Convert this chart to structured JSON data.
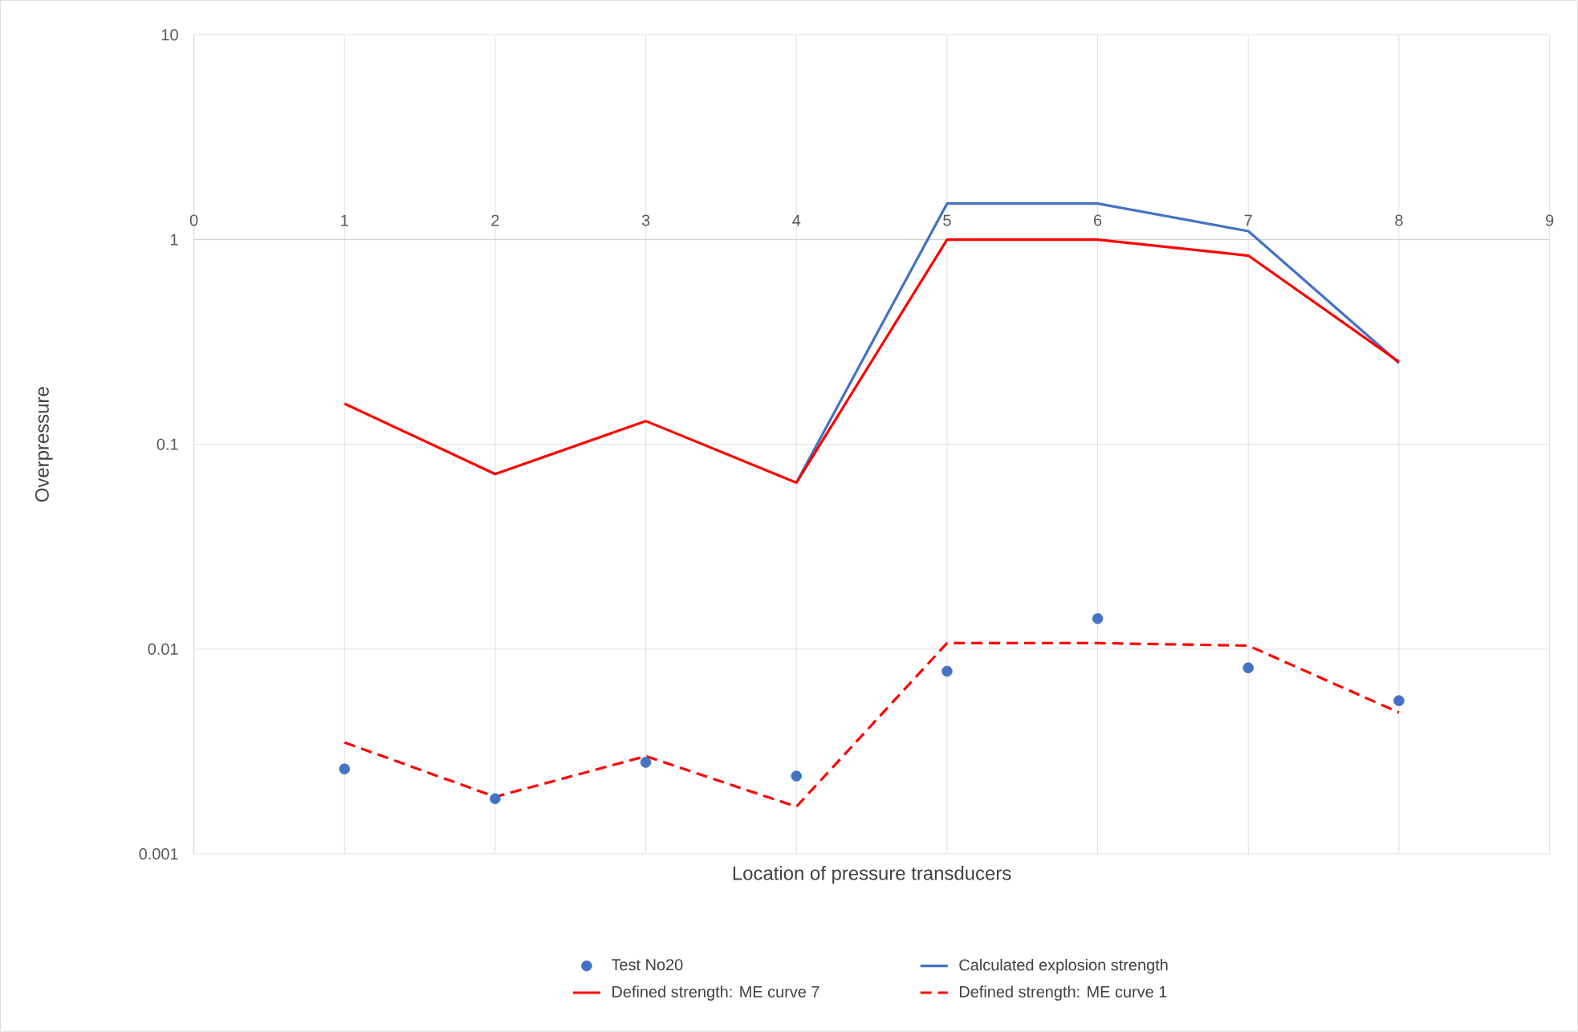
{
  "chart_data": {
    "type": "line",
    "xlabel": "Location of pressure transducers",
    "ylabel": "Overpressure",
    "x": [
      1,
      2,
      3,
      4,
      5,
      6,
      7,
      8
    ],
    "xlim": [
      0,
      9
    ],
    "xticks": [
      0,
      1,
      2,
      3,
      4,
      5,
      6,
      7,
      8,
      9
    ],
    "ylim": [
      0.001,
      10
    ],
    "yticks": [
      0.001,
      0.01,
      0.1,
      1,
      10
    ],
    "log": "y",
    "grid": true,
    "legend": "bottom",
    "series": [
      {
        "name": "Test No20",
        "type": "scatter",
        "marker": "circle",
        "color": "#4472c4",
        "values": [
          0.0026,
          0.00186,
          0.0028,
          0.0024,
          0.0078,
          0.0141,
          0.0081,
          0.0056
        ]
      },
      {
        "name": "Calculated explosion strength",
        "color": "#4472c4",
        "values": [
          null,
          null,
          null,
          0.065,
          1.5,
          1.5,
          1.1,
          0.25
        ]
      },
      {
        "name": "Defined strength: ME curve 7",
        "color": "#ff0000",
        "values": [
          0.158,
          0.0716,
          0.13,
          0.065,
          1.0,
          1.0,
          0.835,
          0.253
        ]
      },
      {
        "name": "Defined strength: ME curve 1",
        "line_style": "dashed",
        "color": "#ff0000",
        "values": [
          0.0035,
          0.0019,
          0.003,
          0.0017,
          0.0107,
          0.0107,
          0.0104,
          0.0049
        ]
      }
    ]
  }
}
